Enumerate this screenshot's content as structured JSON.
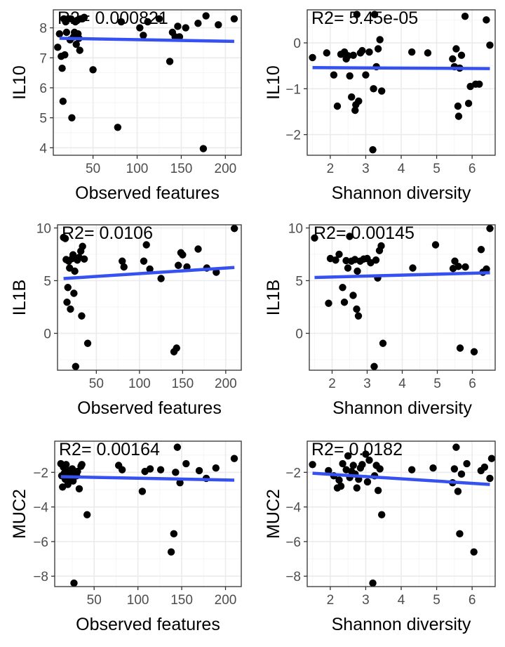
{
  "colors": {
    "point": "#000000",
    "fit_line": "#3551f0",
    "grid_major": "#ebebeb",
    "grid_minor": "#f5f5f5",
    "panel_border": "#333333",
    "tick_text": "#4d4d4d"
  },
  "chart_data": [
    {
      "type": "scatter",
      "xlabel": "Observed features",
      "ylabel": "IL10",
      "annotation": "R2= 0.000821",
      "xlim": [
        5,
        218
      ],
      "ylim": [
        3.75,
        8.6
      ],
      "xticks": [
        50,
        100,
        150,
        200
      ],
      "yticks": [
        4,
        5,
        6,
        7,
        8
      ],
      "fit": [
        [
          12,
          7.65
        ],
        [
          210,
          7.55
        ]
      ],
      "grid": true,
      "legend": "none",
      "points": [
        [
          10,
          7.35
        ],
        [
          12,
          7.8
        ],
        [
          14,
          7.05
        ],
        [
          15,
          6.65
        ],
        [
          16,
          5.55
        ],
        [
          17,
          8.3
        ],
        [
          18,
          7.1
        ],
        [
          19,
          8.2
        ],
        [
          20,
          7.85
        ],
        [
          22,
          8.3
        ],
        [
          24,
          7.6
        ],
        [
          25,
          8.3
        ],
        [
          26,
          5.0
        ],
        [
          28,
          7.7
        ],
        [
          29,
          7.85
        ],
        [
          30,
          8.2
        ],
        [
          31,
          7.45
        ],
        [
          32,
          8.25
        ],
        [
          33,
          7.8
        ],
        [
          34,
          7.65
        ],
        [
          35,
          7.25
        ],
        [
          36,
          8.3
        ],
        [
          38,
          8.3
        ],
        [
          40,
          8.35
        ],
        [
          50,
          6.6
        ],
        [
          78,
          4.68
        ],
        [
          82,
          8.2
        ],
        [
          103,
          8.0
        ],
        [
          107,
          7.75
        ],
        [
          112,
          8.2
        ],
        [
          125,
          8.3
        ],
        [
          137,
          6.88
        ],
        [
          140,
          7.85
        ],
        [
          143,
          7.7
        ],
        [
          146,
          8.05
        ],
        [
          148,
          7.7
        ],
        [
          155,
          8.0
        ],
        [
          169,
          8.15
        ],
        [
          175,
          3.97
        ],
        [
          178,
          8.4
        ],
        [
          192,
          8.1
        ],
        [
          210,
          8.3
        ]
      ]
    },
    {
      "type": "scatter",
      "xlabel": "Shannon diversity",
      "ylabel": "IL10",
      "annotation": "R2= 5.45e-05",
      "xlim": [
        1.35,
        6.65
      ],
      "ylim": [
        -2.45,
        0.72
      ],
      "xticks": [
        2,
        3,
        4,
        5,
        6
      ],
      "yticks": [
        -2,
        -1,
        0
      ],
      "fit": [
        [
          1.5,
          -0.54
        ],
        [
          6.5,
          -0.56
        ]
      ],
      "grid": true,
      "legend": "none",
      "points": [
        [
          1.5,
          -0.32
        ],
        [
          1.9,
          -0.22
        ],
        [
          2.1,
          -0.7
        ],
        [
          2.2,
          -1.38
        ],
        [
          2.3,
          -0.25
        ],
        [
          2.4,
          -0.2
        ],
        [
          2.45,
          -0.35
        ],
        [
          2.5,
          -0.28
        ],
        [
          2.55,
          -0.72
        ],
        [
          2.6,
          -1.18
        ],
        [
          2.65,
          -0.27
        ],
        [
          2.7,
          -1.47
        ],
        [
          2.72,
          -1.35
        ],
        [
          2.75,
          0.62
        ],
        [
          2.8,
          -1.27
        ],
        [
          2.85,
          -0.22
        ],
        [
          2.9,
          -0.17
        ],
        [
          3.0,
          -0.7
        ],
        [
          3.1,
          -0.2
        ],
        [
          3.2,
          -2.33
        ],
        [
          3.22,
          -1.0
        ],
        [
          3.25,
          0.62
        ],
        [
          3.3,
          -0.52
        ],
        [
          3.35,
          -0.13
        ],
        [
          3.4,
          0.07
        ],
        [
          3.45,
          -1.05
        ],
        [
          4.3,
          -0.2
        ],
        [
          4.75,
          -0.22
        ],
        [
          5.45,
          -0.35
        ],
        [
          5.5,
          -0.52
        ],
        [
          5.55,
          -0.13
        ],
        [
          5.6,
          -1.38
        ],
        [
          5.62,
          -1.6
        ],
        [
          5.65,
          -0.55
        ],
        [
          5.7,
          -0.27
        ],
        [
          5.8,
          0.58
        ],
        [
          5.9,
          -1.32
        ],
        [
          5.95,
          -0.95
        ],
        [
          6.1,
          -0.9
        ],
        [
          6.2,
          -0.9
        ],
        [
          6.4,
          0.5
        ],
        [
          6.5,
          -0.05
        ]
      ]
    },
    {
      "type": "scatter",
      "xlabel": "Observed features",
      "ylabel": "IL1B",
      "annotation": "R2= 0.0106",
      "xlim": [
        5,
        218
      ],
      "ylim": [
        -3.5,
        10.3
      ],
      "xticks": [
        50,
        100,
        150,
        200
      ],
      "yticks": [
        0,
        5,
        10
      ],
      "fit": [
        [
          12,
          5.2
        ],
        [
          210,
          6.25
        ]
      ],
      "grid": true,
      "legend": "none",
      "points": [
        [
          12,
          9.1
        ],
        [
          14,
          9.0
        ],
        [
          15,
          7.0
        ],
        [
          16,
          2.95
        ],
        [
          17,
          4.35
        ],
        [
          18,
          6.85
        ],
        [
          19,
          6.2
        ],
        [
          20,
          2.3
        ],
        [
          22,
          7.1
        ],
        [
          23,
          7.45
        ],
        [
          24,
          3.8
        ],
        [
          25,
          5.9
        ],
        [
          26,
          -3.15
        ],
        [
          28,
          6.95
        ],
        [
          30,
          7.2
        ],
        [
          32,
          7.8
        ],
        [
          33,
          1.65
        ],
        [
          34,
          8.25
        ],
        [
          36,
          7.05
        ],
        [
          40,
          -0.95
        ],
        [
          80,
          6.85
        ],
        [
          82,
          6.3
        ],
        [
          105,
          6.85
        ],
        [
          108,
          8.4
        ],
        [
          112,
          6.1
        ],
        [
          125,
          5.2
        ],
        [
          140,
          -1.75
        ],
        [
          143,
          -1.4
        ],
        [
          145,
          6.45
        ],
        [
          148,
          7.65
        ],
        [
          150,
          7.45
        ],
        [
          155,
          6.3
        ],
        [
          168,
          8.0
        ],
        [
          178,
          6.2
        ],
        [
          189,
          5.8
        ],
        [
          210,
          9.95
        ]
      ]
    },
    {
      "type": "scatter",
      "xlabel": "Shannon diversity",
      "ylabel": "IL1B",
      "annotation": "R2= 0.00145",
      "xlim": [
        1.35,
        6.65
      ],
      "ylim": [
        -3.5,
        10.3
      ],
      "xticks": [
        2,
        3,
        4,
        5,
        6
      ],
      "yticks": [
        0,
        5,
        10
      ],
      "fit": [
        [
          1.5,
          5.3
        ],
        [
          6.5,
          5.75
        ]
      ],
      "grid": true,
      "legend": "none",
      "points": [
        [
          1.5,
          9.05
        ],
        [
          1.9,
          2.85
        ],
        [
          1.95,
          7.1
        ],
        [
          2.1,
          6.95
        ],
        [
          2.2,
          7.5
        ],
        [
          2.3,
          4.35
        ],
        [
          2.35,
          2.95
        ],
        [
          2.4,
          6.9
        ],
        [
          2.45,
          6.2
        ],
        [
          2.5,
          9.2
        ],
        [
          2.55,
          6.85
        ],
        [
          2.6,
          3.6
        ],
        [
          2.65,
          7.0
        ],
        [
          2.7,
          2.3
        ],
        [
          2.72,
          5.9
        ],
        [
          2.75,
          1.65
        ],
        [
          2.8,
          6.85
        ],
        [
          2.9,
          7.05
        ],
        [
          3.0,
          7.1
        ],
        [
          3.1,
          6.7
        ],
        [
          3.2,
          -3.15
        ],
        [
          3.25,
          6.95
        ],
        [
          3.3,
          5.25
        ],
        [
          3.35,
          7.85
        ],
        [
          3.4,
          8.3
        ],
        [
          3.45,
          -0.95
        ],
        [
          4.3,
          6.2
        ],
        [
          4.95,
          8.4
        ],
        [
          5.45,
          6.15
        ],
        [
          5.5,
          6.85
        ],
        [
          5.6,
          6.35
        ],
        [
          5.65,
          -1.4
        ],
        [
          5.8,
          6.3
        ],
        [
          6.05,
          -1.75
        ],
        [
          6.25,
          7.95
        ],
        [
          6.3,
          5.8
        ],
        [
          6.4,
          6.1
        ],
        [
          6.5,
          9.95
        ]
      ]
    },
    {
      "type": "scatter",
      "xlabel": "Observed features",
      "ylabel": "MUC2",
      "annotation": "R2= 0.00164",
      "xlim": [
        5,
        218
      ],
      "ylim": [
        -8.6,
        -0.2
      ],
      "xticks": [
        50,
        100,
        150,
        200
      ],
      "yticks": [
        -8,
        -6,
        -4,
        -2
      ],
      "fit": [
        [
          12,
          -2.25
        ],
        [
          210,
          -2.45
        ]
      ],
      "grid": true,
      "legend": "none",
      "points": [
        [
          12,
          -1.5
        ],
        [
          13,
          -2.2
        ],
        [
          14,
          -2.85
        ],
        [
          15,
          -1.7
        ],
        [
          16,
          -2.05
        ],
        [
          17,
          -2.4
        ],
        [
          18,
          -1.55
        ],
        [
          19,
          -2.0
        ],
        [
          20,
          -2.7
        ],
        [
          21,
          -2.35
        ],
        [
          22,
          -1.9
        ],
        [
          23,
          -2.1
        ],
        [
          24,
          -2.25
        ],
        [
          25,
          -1.8
        ],
        [
          26,
          -2.5
        ],
        [
          27,
          -8.4
        ],
        [
          28,
          -2.0
        ],
        [
          30,
          -2.2
        ],
        [
          31,
          -1.95
        ],
        [
          33,
          -2.95
        ],
        [
          35,
          -1.65
        ],
        [
          36,
          -1.55
        ],
        [
          42,
          -4.45
        ],
        [
          78,
          -1.6
        ],
        [
          82,
          -1.85
        ],
        [
          105,
          -3.1
        ],
        [
          108,
          -1.95
        ],
        [
          114,
          -1.8
        ],
        [
          126,
          -1.85
        ],
        [
          138,
          -6.6
        ],
        [
          141,
          -5.55
        ],
        [
          143,
          -2.0
        ],
        [
          145,
          -0.55
        ],
        [
          148,
          -2.6
        ],
        [
          155,
          -1.5
        ],
        [
          170,
          -1.9
        ],
        [
          178,
          -2.35
        ],
        [
          189,
          -1.75
        ],
        [
          210,
          -1.2
        ]
      ]
    },
    {
      "type": "scatter",
      "xlabel": "Shannon diversity",
      "ylabel": "MUC2",
      "annotation": "R2= 0.0182",
      "xlim": [
        1.35,
        6.65
      ],
      "ylim": [
        -8.6,
        -0.2
      ],
      "xticks": [
        2,
        3,
        4,
        5,
        6
      ],
      "yticks": [
        -8,
        -6,
        -4,
        -2
      ],
      "fit": [
        [
          1.5,
          -2.05
        ],
        [
          6.5,
          -2.7
        ]
      ],
      "grid": true,
      "legend": "none",
      "points": [
        [
          1.5,
          -1.55
        ],
        [
          1.95,
          -1.9
        ],
        [
          2.1,
          -2.2
        ],
        [
          2.2,
          -2.9
        ],
        [
          2.25,
          -2.45
        ],
        [
          2.3,
          -2.8
        ],
        [
          2.35,
          -1.5
        ],
        [
          2.45,
          -1.85
        ],
        [
          2.5,
          -1.05
        ],
        [
          2.55,
          -2.3
        ],
        [
          2.6,
          -1.95
        ],
        [
          2.65,
          -1.6
        ],
        [
          2.7,
          -2.1
        ],
        [
          2.75,
          -2.9
        ],
        [
          2.8,
          -2.4
        ],
        [
          2.85,
          -1.75
        ],
        [
          2.9,
          -1.55
        ],
        [
          3.0,
          -0.95
        ],
        [
          3.05,
          -2.55
        ],
        [
          3.1,
          -1.3
        ],
        [
          3.2,
          -8.4
        ],
        [
          3.25,
          -2.2
        ],
        [
          3.3,
          -1.6
        ],
        [
          3.35,
          -3.05
        ],
        [
          3.4,
          -1.8
        ],
        [
          3.45,
          -4.45
        ],
        [
          4.3,
          -1.85
        ],
        [
          4.9,
          -1.75
        ],
        [
          5.45,
          -2.6
        ],
        [
          5.5,
          -1.8
        ],
        [
          5.55,
          -0.55
        ],
        [
          5.6,
          -3.1
        ],
        [
          5.65,
          -5.55
        ],
        [
          5.7,
          -2.1
        ],
        [
          5.85,
          -1.5
        ],
        [
          6.05,
          -6.6
        ],
        [
          6.25,
          -1.9
        ],
        [
          6.35,
          -1.7
        ],
        [
          6.5,
          -2.35
        ],
        [
          6.55,
          -1.2
        ]
      ]
    }
  ]
}
